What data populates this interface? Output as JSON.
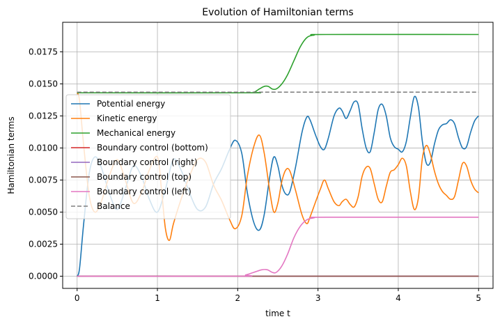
{
  "chart_data": {
    "type": "line",
    "title": "Evolution of Hamiltonian terms",
    "xlabel": "time t",
    "ylabel": "Hamiltonian terms",
    "xlim": [
      -0.18,
      5.18
    ],
    "ylim": [
      -0.00095,
      0.0198
    ],
    "xticks": [
      0,
      1,
      2,
      3,
      4,
      5
    ],
    "xtick_labels": [
      "0",
      "1",
      "2",
      "3",
      "4",
      "5"
    ],
    "yticks": [
      0.0,
      0.0025,
      0.005,
      0.0075,
      0.01,
      0.0125,
      0.015,
      0.0175
    ],
    "ytick_labels": [
      "0.0000",
      "0.0025",
      "0.0050",
      "0.0075",
      "0.0100",
      "0.0125",
      "0.0150",
      "0.0175"
    ],
    "grid": true,
    "legend_position": "left",
    "series": [
      {
        "name": "Potential energy",
        "color": "#1f77b4",
        "dash": "",
        "points": [
          [
            0.0,
            0.0
          ],
          [
            0.03,
            0.0006
          ],
          [
            0.08,
            0.004
          ],
          [
            0.15,
            0.008
          ],
          [
            0.22,
            0.0093
          ],
          [
            0.3,
            0.0085
          ],
          [
            0.4,
            0.0065
          ],
          [
            0.5,
            0.0052
          ],
          [
            0.6,
            0.0068
          ],
          [
            0.7,
            0.0086
          ],
          [
            0.8,
            0.0078
          ],
          [
            0.9,
            0.006
          ],
          [
            1.0,
            0.005
          ],
          [
            1.1,
            0.0068
          ],
          [
            1.2,
            0.0091
          ],
          [
            1.3,
            0.0082
          ],
          [
            1.4,
            0.0065
          ],
          [
            1.5,
            0.0052
          ],
          [
            1.6,
            0.0054
          ],
          [
            1.7,
            0.0072
          ],
          [
            1.8,
            0.0084
          ],
          [
            1.9,
            0.0099
          ],
          [
            1.97,
            0.0106
          ],
          [
            2.05,
            0.0096
          ],
          [
            2.12,
            0.0065
          ],
          [
            2.2,
            0.0042
          ],
          [
            2.27,
            0.0036
          ],
          [
            2.33,
            0.0048
          ],
          [
            2.4,
            0.0078
          ],
          [
            2.45,
            0.0093
          ],
          [
            2.5,
            0.0086
          ],
          [
            2.55,
            0.0071
          ],
          [
            2.6,
            0.0064
          ],
          [
            2.65,
            0.0066
          ],
          [
            2.72,
            0.0085
          ],
          [
            2.8,
            0.0112
          ],
          [
            2.86,
            0.0124
          ],
          [
            2.9,
            0.0122
          ],
          [
            2.97,
            0.011
          ],
          [
            3.03,
            0.0101
          ],
          [
            3.08,
            0.0099
          ],
          [
            3.13,
            0.0108
          ],
          [
            3.2,
            0.0125
          ],
          [
            3.26,
            0.0131
          ],
          [
            3.3,
            0.0129
          ],
          [
            3.35,
            0.0123
          ],
          [
            3.4,
            0.0129
          ],
          [
            3.45,
            0.0136
          ],
          [
            3.5,
            0.0134
          ],
          [
            3.55,
            0.0115
          ],
          [
            3.6,
            0.01
          ],
          [
            3.65,
            0.0097
          ],
          [
            3.7,
            0.0112
          ],
          [
            3.75,
            0.013
          ],
          [
            3.8,
            0.0134
          ],
          [
            3.85,
            0.0125
          ],
          [
            3.9,
            0.0108
          ],
          [
            3.95,
            0.0101
          ],
          [
            4.0,
            0.0099
          ],
          [
            4.05,
            0.0097
          ],
          [
            4.1,
            0.0105
          ],
          [
            4.15,
            0.0124
          ],
          [
            4.2,
            0.014
          ],
          [
            4.25,
            0.0132
          ],
          [
            4.3,
            0.0105
          ],
          [
            4.35,
            0.0088
          ],
          [
            4.4,
            0.0089
          ],
          [
            4.45,
            0.0103
          ],
          [
            4.5,
            0.0114
          ],
          [
            4.55,
            0.0118
          ],
          [
            4.6,
            0.0119
          ],
          [
            4.65,
            0.0122
          ],
          [
            4.7,
            0.0119
          ],
          [
            4.75,
            0.0108
          ],
          [
            4.8,
            0.01
          ],
          [
            4.85,
            0.0101
          ],
          [
            4.9,
            0.0112
          ],
          [
            4.95,
            0.0121
          ],
          [
            5.0,
            0.0125
          ]
        ]
      },
      {
        "name": "Kinetic energy",
        "color": "#ff7f0e",
        "dash": "",
        "points": [
          [
            0.0,
            0.0143
          ],
          [
            0.03,
            0.0137
          ],
          [
            0.08,
            0.0103
          ],
          [
            0.15,
            0.0063
          ],
          [
            0.22,
            0.005
          ],
          [
            0.3,
            0.0058
          ],
          [
            0.4,
            0.0078
          ],
          [
            0.5,
            0.0091
          ],
          [
            0.6,
            0.0075
          ],
          [
            0.7,
            0.0057
          ],
          [
            0.8,
            0.0065
          ],
          [
            0.9,
            0.0083
          ],
          [
            1.0,
            0.0093
          ],
          [
            1.05,
            0.0068
          ],
          [
            1.1,
            0.0037
          ],
          [
            1.15,
            0.0028
          ],
          [
            1.2,
            0.0041
          ],
          [
            1.3,
            0.0061
          ],
          [
            1.4,
            0.0078
          ],
          [
            1.5,
            0.0091
          ],
          [
            1.6,
            0.0089
          ],
          [
            1.7,
            0.0071
          ],
          [
            1.8,
            0.0059
          ],
          [
            1.9,
            0.0044
          ],
          [
            1.97,
            0.0037
          ],
          [
            2.05,
            0.0047
          ],
          [
            2.12,
            0.0078
          ],
          [
            2.2,
            0.0101
          ],
          [
            2.27,
            0.011
          ],
          [
            2.33,
            0.0096
          ],
          [
            2.4,
            0.0066
          ],
          [
            2.45,
            0.005
          ],
          [
            2.5,
            0.0057
          ],
          [
            2.55,
            0.0074
          ],
          [
            2.6,
            0.0083
          ],
          [
            2.65,
            0.0082
          ],
          [
            2.72,
            0.0067
          ],
          [
            2.8,
            0.0048
          ],
          [
            2.86,
            0.0041
          ],
          [
            2.9,
            0.0046
          ],
          [
            2.97,
            0.0058
          ],
          [
            3.03,
            0.0068
          ],
          [
            3.08,
            0.0075
          ],
          [
            3.13,
            0.0068
          ],
          [
            3.2,
            0.0058
          ],
          [
            3.26,
            0.0055
          ],
          [
            3.3,
            0.0058
          ],
          [
            3.35,
            0.006
          ],
          [
            3.4,
            0.0056
          ],
          [
            3.45,
            0.0054
          ],
          [
            3.5,
            0.0062
          ],
          [
            3.55,
            0.0078
          ],
          [
            3.6,
            0.0085
          ],
          [
            3.65,
            0.0084
          ],
          [
            3.7,
            0.0072
          ],
          [
            3.75,
            0.006
          ],
          [
            3.8,
            0.0058
          ],
          [
            3.85,
            0.007
          ],
          [
            3.9,
            0.0081
          ],
          [
            3.95,
            0.0083
          ],
          [
            4.0,
            0.0087
          ],
          [
            4.05,
            0.0092
          ],
          [
            4.1,
            0.0086
          ],
          [
            4.15,
            0.0066
          ],
          [
            4.2,
            0.0052
          ],
          [
            4.25,
            0.0061
          ],
          [
            4.3,
            0.0092
          ],
          [
            4.35,
            0.0102
          ],
          [
            4.4,
            0.0095
          ],
          [
            4.45,
            0.0082
          ],
          [
            4.5,
            0.0072
          ],
          [
            4.55,
            0.0066
          ],
          [
            4.6,
            0.0063
          ],
          [
            4.65,
            0.006
          ],
          [
            4.7,
            0.0062
          ],
          [
            4.75,
            0.0075
          ],
          [
            4.8,
            0.0088
          ],
          [
            4.85,
            0.0086
          ],
          [
            4.9,
            0.0075
          ],
          [
            4.95,
            0.0068
          ],
          [
            5.0,
            0.0065
          ]
        ]
      },
      {
        "name": "Mechanical energy",
        "color": "#2ca02c",
        "dash": "",
        "points": [
          [
            0.0,
            0.0143
          ],
          [
            2.1,
            0.0143
          ],
          [
            2.2,
            0.01435
          ],
          [
            2.27,
            0.0146
          ],
          [
            2.33,
            0.0148
          ],
          [
            2.38,
            0.0148
          ],
          [
            2.43,
            0.0146
          ],
          [
            2.48,
            0.0146
          ],
          [
            2.55,
            0.015
          ],
          [
            2.62,
            0.0157
          ],
          [
            2.7,
            0.0168
          ],
          [
            2.78,
            0.0179
          ],
          [
            2.86,
            0.0186
          ],
          [
            2.95,
            0.0188
          ],
          [
            3.1,
            0.01885
          ],
          [
            5.0,
            0.01885
          ]
        ]
      },
      {
        "name": "Boundary control (bottom)",
        "color": "#d62728",
        "dash": "",
        "points": [
          [
            0.0,
            0.0
          ],
          [
            5.0,
            0.0
          ]
        ]
      },
      {
        "name": "Boundary control (right)",
        "color": "#9467bd",
        "dash": "",
        "points": [
          [
            0.0,
            0.0
          ],
          [
            5.0,
            0.0
          ]
        ]
      },
      {
        "name": "Boundary control (top)",
        "color": "#8c564b",
        "dash": "",
        "points": [
          [
            0.0,
            0.0
          ],
          [
            5.0,
            0.0
          ]
        ]
      },
      {
        "name": "Boundary control (left)",
        "color": "#e377c2",
        "dash": "",
        "points": [
          [
            0.0,
            0.0
          ],
          [
            2.0,
            0.0
          ],
          [
            2.1,
            0.0001
          ],
          [
            2.2,
            0.0003
          ],
          [
            2.3,
            0.0005
          ],
          [
            2.37,
            0.0005
          ],
          [
            2.43,
            0.0003
          ],
          [
            2.48,
            0.0003
          ],
          [
            2.55,
            0.0008
          ],
          [
            2.62,
            0.0017
          ],
          [
            2.7,
            0.003
          ],
          [
            2.78,
            0.0039
          ],
          [
            2.86,
            0.0044
          ],
          [
            2.95,
            0.00455
          ],
          [
            3.1,
            0.0046
          ],
          [
            5.0,
            0.0046
          ]
        ]
      },
      {
        "name": "Balance",
        "color": "#7f7f7f",
        "dash": "6,3",
        "points": [
          [
            0.0,
            0.01435
          ],
          [
            5.0,
            0.01435
          ]
        ]
      }
    ]
  }
}
